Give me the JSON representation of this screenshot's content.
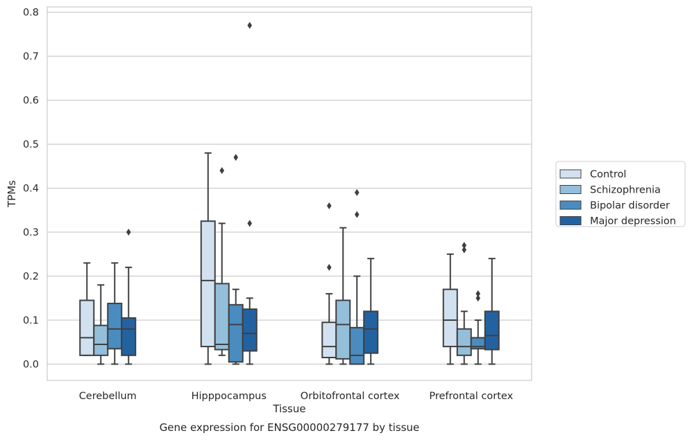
{
  "chart_data": {
    "type": "boxplot",
    "title": "Gene expression for ENSG00000279177 by tissue",
    "xlabel": "Tissue",
    "ylabel": "TPMs",
    "ylim": [
      -0.037,
      0.812
    ],
    "yticks": [
      0.0,
      0.1,
      0.2,
      0.3,
      0.4,
      0.5,
      0.6,
      0.7,
      0.8
    ],
    "ytick_labels": [
      "0.0",
      "0.1",
      "0.2",
      "0.3",
      "0.4",
      "0.5",
      "0.6",
      "0.7",
      "0.8"
    ],
    "grid": "horizontal",
    "legend_position": "right",
    "categories": [
      "Cerebellum",
      "Hipppocampus",
      "Orbitofrontal cortex",
      "Prefrontal cortex"
    ],
    "series": [
      {
        "name": "Control",
        "color": "#d1e1ef",
        "boxes": [
          {
            "whislo": 0.02,
            "q1": 0.02,
            "med": 0.06,
            "q3": 0.145,
            "whishi": 0.23,
            "fliers": []
          },
          {
            "whislo": 0.0,
            "q1": 0.04,
            "med": 0.19,
            "q3": 0.325,
            "whishi": 0.48,
            "fliers": []
          },
          {
            "whislo": 0.0,
            "q1": 0.015,
            "med": 0.04,
            "q3": 0.095,
            "whishi": 0.16,
            "fliers": [
              0.22,
              0.36
            ]
          },
          {
            "whislo": 0.0,
            "q1": 0.04,
            "med": 0.1,
            "q3": 0.17,
            "whishi": 0.25,
            "fliers": []
          }
        ]
      },
      {
        "name": "Schizophrenia",
        "color": "#94bfda",
        "boxes": [
          {
            "whislo": 0.0,
            "q1": 0.02,
            "med": 0.045,
            "q3": 0.088,
            "whishi": 0.18,
            "fliers": []
          },
          {
            "whislo": 0.02,
            "q1": 0.033,
            "med": 0.045,
            "q3": 0.183,
            "whishi": 0.32,
            "fliers": [
              0.44
            ]
          },
          {
            "whislo": 0.0,
            "q1": 0.012,
            "med": 0.09,
            "q3": 0.145,
            "whishi": 0.31,
            "fliers": []
          },
          {
            "whislo": 0.0,
            "q1": 0.02,
            "med": 0.04,
            "q3": 0.08,
            "whishi": 0.12,
            "fliers": [
              0.26,
              0.27
            ]
          }
        ]
      },
      {
        "name": "Bipolar disorder",
        "color": "#4a8cbf",
        "boxes": [
          {
            "whislo": 0.0,
            "q1": 0.035,
            "med": 0.08,
            "q3": 0.138,
            "whishi": 0.23,
            "fliers": []
          },
          {
            "whislo": 0.0,
            "q1": 0.005,
            "med": 0.09,
            "q3": 0.135,
            "whishi": 0.17,
            "fliers": [
              0.47
            ]
          },
          {
            "whislo": 0.0,
            "q1": 0.0,
            "med": 0.02,
            "q3": 0.083,
            "whishi": 0.2,
            "fliers": [
              0.34,
              0.39
            ]
          },
          {
            "whislo": 0.0,
            "q1": 0.035,
            "med": 0.04,
            "q3": 0.06,
            "whishi": 0.1,
            "fliers": [
              0.15,
              0.16
            ]
          }
        ]
      },
      {
        "name": "Major depression",
        "color": "#2362a1",
        "boxes": [
          {
            "whislo": 0.0,
            "q1": 0.02,
            "med": 0.08,
            "q3": 0.105,
            "whishi": 0.22,
            "fliers": [
              0.3
            ]
          },
          {
            "whislo": 0.0,
            "q1": 0.03,
            "med": 0.07,
            "q3": 0.125,
            "whishi": 0.15,
            "fliers": [
              0.32,
              0.77
            ]
          },
          {
            "whislo": 0.0,
            "q1": 0.025,
            "med": 0.08,
            "q3": 0.12,
            "whishi": 0.24,
            "fliers": []
          },
          {
            "whislo": 0.0,
            "q1": 0.033,
            "med": 0.065,
            "q3": 0.12,
            "whishi": 0.24,
            "fliers": []
          }
        ]
      }
    ],
    "styles": {
      "line_color": "#3f3f3f",
      "grid_color": "#cccccc",
      "frame_color": "#cccccc",
      "text_color": "#262626"
    }
  }
}
